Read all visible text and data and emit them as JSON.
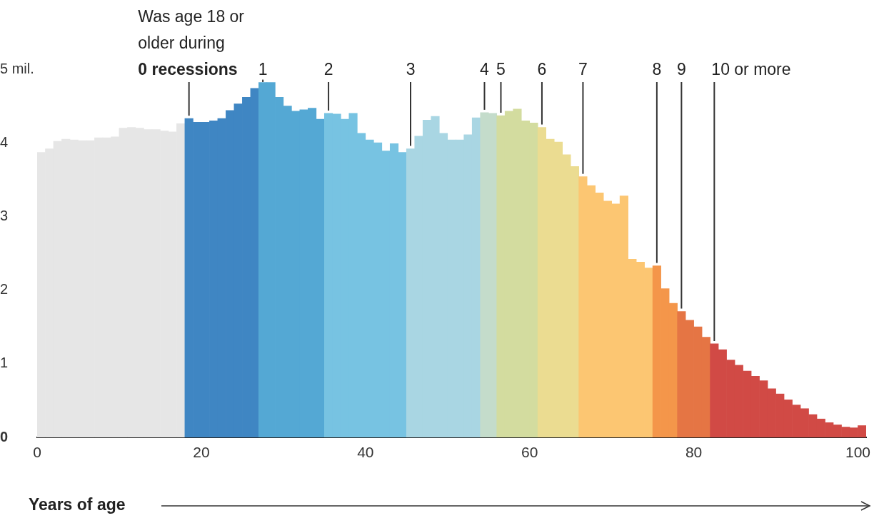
{
  "chart_data": {
    "type": "histogram",
    "xlabel": "Years of age",
    "bins": [
      0,
      1,
      2,
      3,
      4,
      5,
      6,
      7,
      8,
      9,
      10,
      11,
      12,
      13,
      14,
      15,
      16,
      17,
      18,
      19,
      20,
      21,
      22,
      23,
      24,
      25,
      26,
      27,
      28,
      29,
      30,
      31,
      32,
      33,
      34,
      35,
      36,
      37,
      38,
      39,
      40,
      41,
      42,
      43,
      44,
      45,
      46,
      47,
      48,
      49,
      50,
      51,
      52,
      53,
      54,
      55,
      56,
      57,
      58,
      59,
      60,
      61,
      62,
      63,
      64,
      65,
      66,
      67,
      68,
      69,
      70,
      71,
      72,
      73,
      74,
      75,
      76,
      77,
      78,
      79,
      80,
      81,
      82,
      83,
      84,
      85,
      86,
      87,
      88,
      89,
      90,
      91,
      92,
      93,
      94,
      95,
      96,
      97,
      98,
      99,
      100,
      101
    ],
    "values": [
      3.87,
      3.92,
      4.02,
      4.05,
      4.04,
      4.03,
      4.03,
      4.07,
      4.07,
      4.08,
      4.2,
      4.21,
      4.2,
      4.18,
      4.18,
      4.16,
      4.15,
      4.26,
      4.33,
      4.28,
      4.28,
      4.3,
      4.33,
      4.44,
      4.53,
      4.62,
      4.74,
      4.82,
      4.82,
      4.62,
      4.5,
      4.43,
      4.45,
      4.47,
      4.32,
      4.4,
      4.39,
      4.32,
      4.4,
      4.13,
      4.04,
      4.0,
      3.89,
      3.99,
      3.87,
      3.92,
      4.09,
      4.31,
      4.36,
      4.13,
      4.04,
      4.04,
      4.11,
      4.34,
      4.41,
      4.4,
      4.37,
      4.43,
      4.46,
      4.3,
      4.27,
      4.21,
      4.05,
      4.01,
      3.84,
      3.68,
      3.54,
      3.42,
      3.32,
      3.21,
      3.17,
      3.28,
      2.42,
      2.38,
      2.3,
      2.33,
      2.02,
      1.82,
      1.71,
      1.59,
      1.5,
      1.36,
      1.27,
      1.19,
      1.05,
      0.98,
      0.9,
      0.83,
      0.77,
      0.66,
      0.59,
      0.51,
      0.44,
      0.39,
      0.31,
      0.25,
      0.2,
      0.17,
      0.14,
      0.13,
      0.16
    ],
    "colors": [
      "#e6e6e6",
      "#e6e6e6",
      "#e6e6e6",
      "#e6e6e6",
      "#e6e6e6",
      "#e6e6e6",
      "#e6e6e6",
      "#e6e6e6",
      "#e6e6e6",
      "#e6e6e6",
      "#e6e6e6",
      "#e6e6e6",
      "#e6e6e6",
      "#e6e6e6",
      "#e6e6e6",
      "#e6e6e6",
      "#e6e6e6",
      "#e6e6e6",
      "#3f86c3",
      "#3f86c3",
      "#3f86c3",
      "#3f86c3",
      "#3f86c3",
      "#3f86c3",
      "#3f86c3",
      "#3f86c3",
      "#3f86c3",
      "#54a8d4",
      "#54a8d4",
      "#54a8d4",
      "#54a8d4",
      "#54a8d4",
      "#54a8d4",
      "#54a8d4",
      "#54a8d4",
      "#77c3e2",
      "#77c3e2",
      "#77c3e2",
      "#77c3e2",
      "#77c3e2",
      "#77c3e2",
      "#77c3e2",
      "#77c3e2",
      "#77c3e2",
      "#77c3e2",
      "#a9d6e3",
      "#a9d6e3",
      "#a9d6e3",
      "#a9d6e3",
      "#a9d6e3",
      "#a9d6e3",
      "#a9d6e3",
      "#a9d6e3",
      "#a9d6e3",
      "#c4dccb",
      "#c4dccb",
      "#d3dc9f",
      "#d3dc9f",
      "#d3dc9f",
      "#d3dc9f",
      "#d3dc9f",
      "#ebdc91",
      "#ebdc91",
      "#ebdc91",
      "#ebdc91",
      "#ebdc91",
      "#fcc672",
      "#fcc672",
      "#fcc672",
      "#fcc672",
      "#fcc672",
      "#fcc672",
      "#fcc672",
      "#fcc672",
      "#fcc672",
      "#f4964a",
      "#f4964a",
      "#f4964a",
      "#e57544",
      "#e57544",
      "#e57544",
      "#e57544",
      "#d14a45",
      "#d14a45",
      "#d14a45",
      "#d14a45",
      "#d14a45",
      "#d14a45",
      "#d14a45",
      "#d14a45",
      "#d14a45",
      "#d14a45",
      "#d14a45",
      "#d14a45",
      "#d14a45",
      "#d14a45",
      "#d14a45",
      "#d14a45",
      "#d14a45",
      "#d14a45",
      "#d14a45"
    ],
    "xlim": [
      0,
      101
    ],
    "xticks": [
      0,
      20,
      40,
      60,
      80,
      100
    ],
    "ylim": [
      0,
      5
    ],
    "yticks": [
      0,
      1,
      2,
      3,
      4,
      {
        "value": 5,
        "label": "5 mil."
      }
    ],
    "grid": false,
    "legend": false,
    "annotations": [
      "Was age 18 or older during",
      {
        "text": "0 recessions",
        "x": 18.5,
        "y": 4.33
      },
      {
        "text": "1",
        "x": 27.5,
        "y": 4.82
      },
      {
        "text": "2",
        "x": 35.5,
        "y": 4.4
      },
      {
        "text": "3",
        "x": 45.5,
        "y": 3.92
      },
      {
        "text": "4",
        "x": 54.5,
        "y": 4.41
      },
      {
        "text": "5",
        "x": 56.5,
        "y": 4.37
      },
      {
        "text": "6",
        "x": 61.5,
        "y": 4.21
      },
      {
        "text": "7",
        "x": 66.5,
        "y": 3.54
      },
      {
        "text": "8",
        "x": 75.5,
        "y": 2.33
      },
      {
        "text": "9",
        "x": 78.5,
        "y": 1.71
      },
      {
        "text": "10 or more",
        "x": 82.5,
        "y": 1.27
      }
    ]
  }
}
